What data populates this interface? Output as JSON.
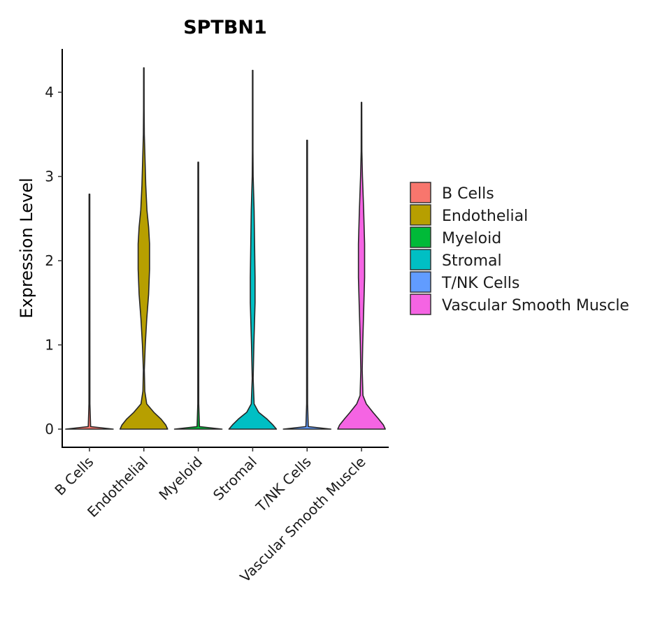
{
  "chart_data": {
    "type": "violin",
    "title": "SPTBN1",
    "xlabel": "",
    "ylabel": "Expression Level",
    "ylim": [
      -0.22,
      4.52
    ],
    "yticks": [
      0,
      1,
      2,
      3,
      4
    ],
    "ytick_labels": [
      "0",
      "1",
      "2",
      "3",
      "4"
    ],
    "categories": [
      "B Cells",
      "Endothelial",
      "Myeloid",
      "Stromal",
      "T/NK Cells",
      "Vascular Smooth Muscle"
    ],
    "legend": {
      "position": "right",
      "entries": [
        {
          "label": "B Cells",
          "color": "#F8766D"
        },
        {
          "label": "Endothelial",
          "color": "#B79F00"
        },
        {
          "label": "Myeloid",
          "color": "#00BA38"
        },
        {
          "label": "Stromal",
          "color": "#00BFC4"
        },
        {
          "label": "T/NK Cells",
          "color": "#619CFF"
        },
        {
          "label": "Vascular Smooth Muscle",
          "color": "#F564E3"
        }
      ]
    },
    "violins": [
      {
        "category": "B Cells",
        "color": "#F8766D",
        "density": [
          [
            0,
            1.0
          ],
          [
            0.03,
            0.05
          ],
          [
            0.3,
            0.02
          ],
          [
            2.79,
            0.015
          ]
        ]
      },
      {
        "category": "Endothelial",
        "color": "#B79F00",
        "density": [
          [
            0,
            1.0
          ],
          [
            0.05,
            0.92
          ],
          [
            0.12,
            0.72
          ],
          [
            0.2,
            0.42
          ],
          [
            0.3,
            0.12
          ],
          [
            0.45,
            0.04
          ],
          [
            0.7,
            0.02
          ],
          [
            1.0,
            0.06
          ],
          [
            1.3,
            0.12
          ],
          [
            1.6,
            0.2
          ],
          [
            1.9,
            0.24
          ],
          [
            2.2,
            0.24
          ],
          [
            2.4,
            0.2
          ],
          [
            2.6,
            0.13
          ],
          [
            2.9,
            0.08
          ],
          [
            3.2,
            0.05
          ],
          [
            3.5,
            0.02
          ],
          [
            3.8,
            0.012
          ],
          [
            4.29,
            0.01
          ]
        ]
      },
      {
        "category": "Myeloid",
        "color": "#00BA38",
        "density": [
          [
            0,
            1.0
          ],
          [
            0.03,
            0.05
          ],
          [
            0.3,
            0.02
          ],
          [
            3.17,
            0.015
          ]
        ]
      },
      {
        "category": "Stromal",
        "color": "#00BFC4",
        "density": [
          [
            0,
            1.0
          ],
          [
            0.05,
            0.85
          ],
          [
            0.12,
            0.6
          ],
          [
            0.2,
            0.25
          ],
          [
            0.3,
            0.06
          ],
          [
            0.6,
            0.02
          ],
          [
            1.0,
            0.05
          ],
          [
            1.5,
            0.1
          ],
          [
            1.8,
            0.1
          ],
          [
            2.2,
            0.08
          ],
          [
            2.6,
            0.06
          ],
          [
            3.0,
            0.02
          ],
          [
            3.3,
            0.012
          ],
          [
            4.26,
            0.01
          ]
        ]
      },
      {
        "category": "T/NK Cells",
        "color": "#619CFF",
        "density": [
          [
            0,
            1.0
          ],
          [
            0.03,
            0.05
          ],
          [
            0.3,
            0.02
          ],
          [
            3.43,
            0.015
          ]
        ]
      },
      {
        "category": "Vascular Smooth Muscle",
        "color": "#F564E3",
        "density": [
          [
            0,
            1.0
          ],
          [
            0.05,
            0.92
          ],
          [
            0.12,
            0.72
          ],
          [
            0.2,
            0.48
          ],
          [
            0.3,
            0.2
          ],
          [
            0.4,
            0.06
          ],
          [
            0.7,
            0.03
          ],
          [
            1.0,
            0.05
          ],
          [
            1.4,
            0.09
          ],
          [
            1.8,
            0.13
          ],
          [
            2.2,
            0.13
          ],
          [
            2.6,
            0.09
          ],
          [
            3.0,
            0.04
          ],
          [
            3.3,
            0.015
          ],
          [
            3.88,
            0.01
          ]
        ]
      }
    ]
  }
}
